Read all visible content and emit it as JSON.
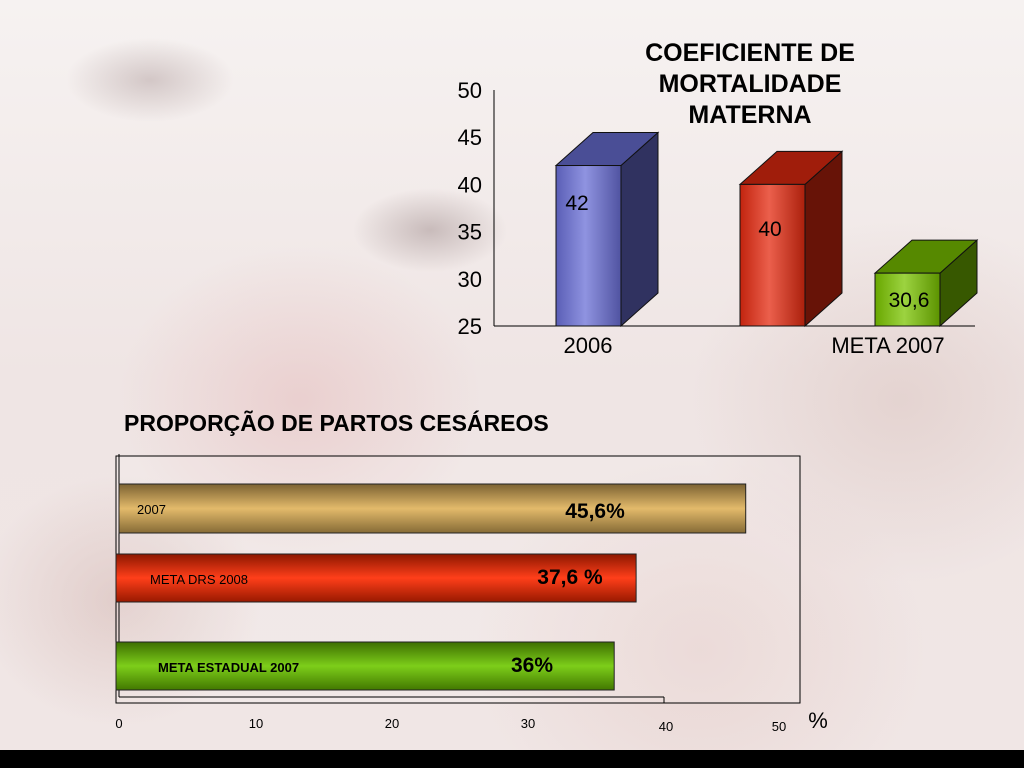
{
  "chart_data": [
    {
      "type": "bar",
      "title": "COEFICIENTE DE\nMORTALIDADE\nMATERNA",
      "categories": [
        "2006",
        "",
        "META 2007"
      ],
      "values": [
        42,
        40,
        30.6
      ],
      "value_labels": [
        "42",
        "40",
        "30,6"
      ],
      "ylim": [
        25,
        50
      ],
      "yticks": [
        "25",
        "30",
        "35",
        "40",
        "45",
        "50"
      ],
      "colors": [
        "#6a6fd6",
        "#e42a10",
        "#7bc400"
      ],
      "orientation": "vertical"
    },
    {
      "type": "bar",
      "title": "PROPORÇÃO DE PARTOS CESÁREOS",
      "orientation": "horizontal",
      "categories": [
        "2007",
        "META DRS  2008",
        "META ESTADUAL 2007"
      ],
      "values": [
        45.6,
        37.6,
        36
      ],
      "value_labels": [
        "45,6%",
        "37,6 %",
        "36%"
      ],
      "xlim": [
        0,
        50
      ],
      "xticks": [
        "0",
        "10",
        "20",
        "30",
        "40",
        "50"
      ],
      "xlabel": "%",
      "colors": [
        "#e0b25a",
        "#ff2a00",
        "#6ec800"
      ]
    }
  ]
}
